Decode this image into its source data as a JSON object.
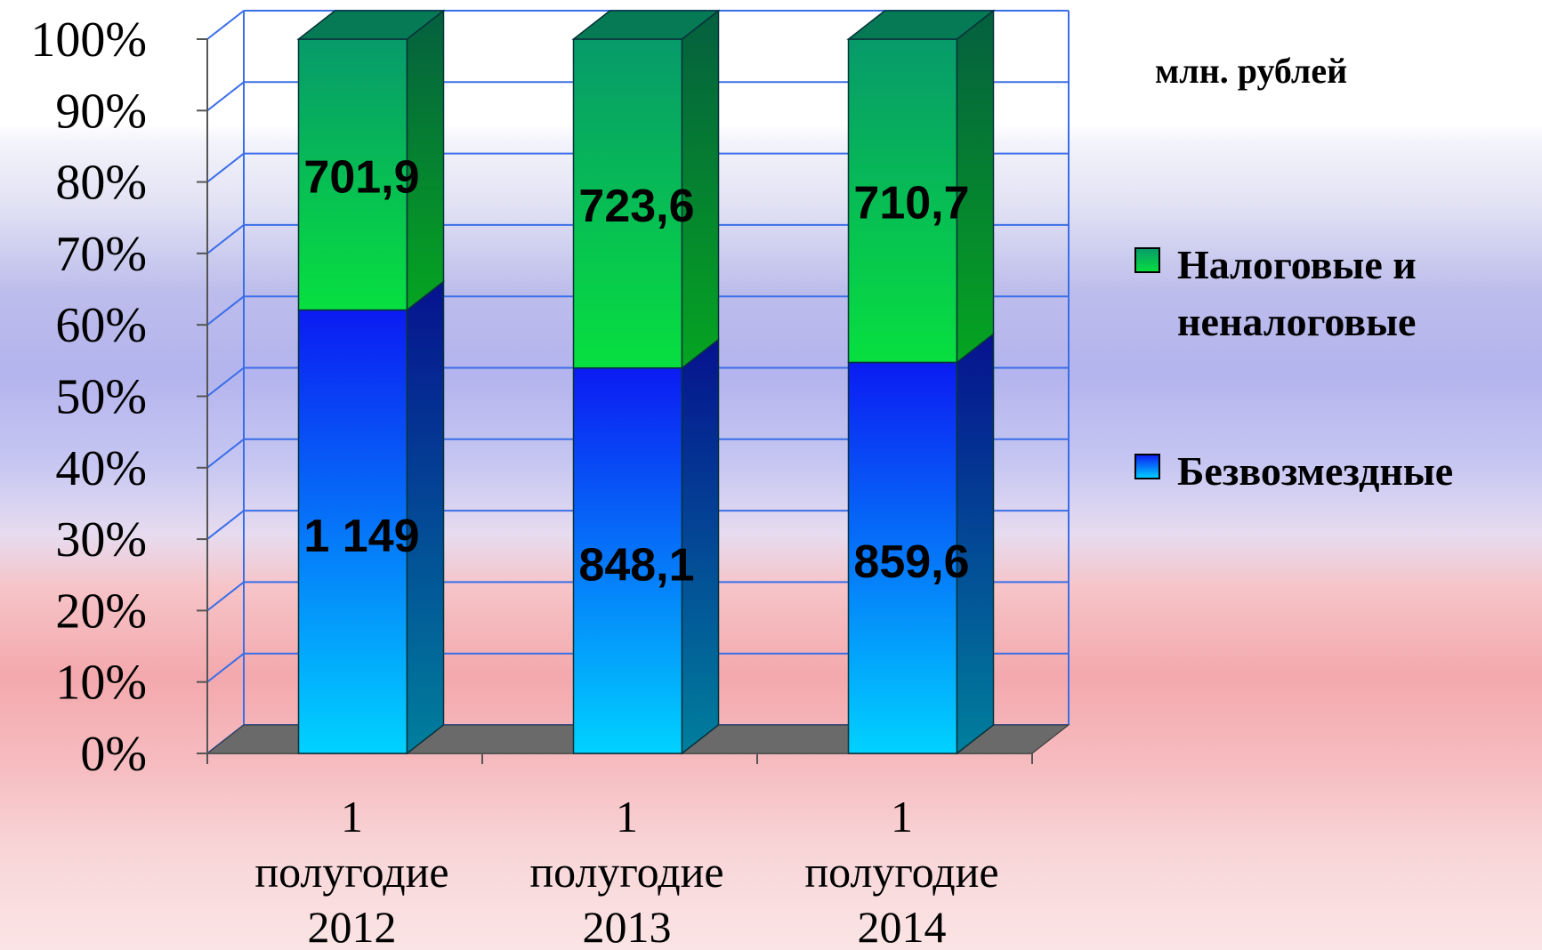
{
  "units_label": "млн. рублей",
  "colors": {
    "taxes_front_top": "#07df3f",
    "taxes_front_bottom": "#079a6a",
    "grants_front_top": "#0b1bf2",
    "grants_front_bottom": "#00d2ff",
    "grid": "#3a6ee8",
    "floor": "#6a6a6a"
  },
  "legend": [
    {
      "label_lines": [
        "Налоговые и",
        "неналоговые"
      ],
      "swatch": "taxes"
    },
    {
      "label_lines": [
        "Безвозмездные"
      ],
      "swatch": "grants"
    }
  ],
  "chart_data": {
    "type": "bar",
    "stacked": "percent",
    "three_d": true,
    "categories": [
      [
        "1",
        "полугодие",
        "2012"
      ],
      [
        "1",
        "полугодие",
        "2013"
      ],
      [
        "1",
        "полугодие",
        "2014"
      ]
    ],
    "series": [
      {
        "name": "Безвозмездные",
        "values": [
          1149,
          848.1,
          859.6
        ],
        "labels": [
          "1 149",
          "848,1",
          "859,6"
        ]
      },
      {
        "name": "Налоговые и неналоговые",
        "values": [
          701.9,
          723.6,
          710.7
        ],
        "labels": [
          "701,9",
          "723,6",
          "710,7"
        ]
      }
    ],
    "yticks": [
      "0%",
      "10%",
      "20%",
      "30%",
      "40%",
      "50%",
      "60%",
      "70%",
      "80%",
      "90%",
      "100%"
    ],
    "ylim": [
      0,
      100
    ],
    "grid": true,
    "legend_position": "right"
  }
}
